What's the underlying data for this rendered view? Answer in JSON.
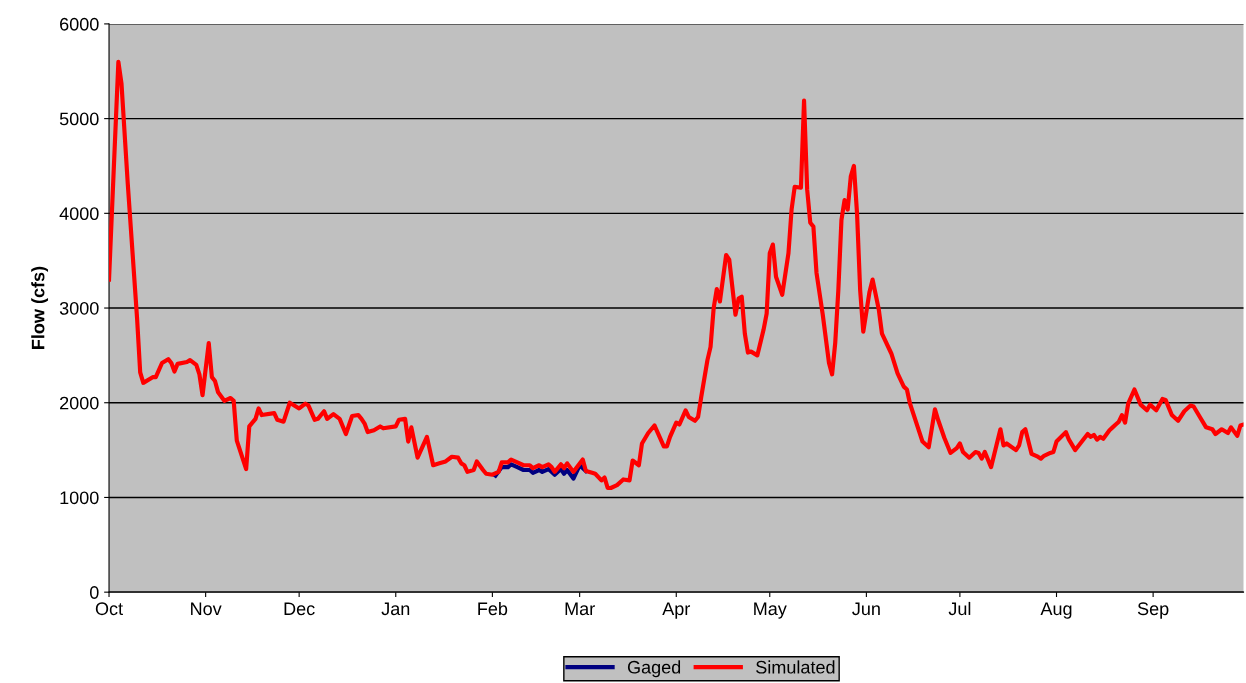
{
  "chart_data": {
    "type": "line",
    "ylabel": "Flow (cfs)",
    "xlim": [
      "2000-10-01",
      "2001-09-30"
    ],
    "xticks": [
      {
        "value": "2000-10-01",
        "label": "Oct"
      },
      {
        "value": "2000-11-01",
        "label": "Nov"
      },
      {
        "value": "2000-12-01",
        "label": "Dec"
      },
      {
        "value": "2001-01-01",
        "label": "Jan"
      },
      {
        "value": "2001-02-01",
        "label": "Feb"
      },
      {
        "value": "2001-03-01",
        "label": "Mar"
      },
      {
        "value": "2001-04-01",
        "label": "Apr"
      },
      {
        "value": "2001-05-01",
        "label": "May"
      },
      {
        "value": "2001-06-01",
        "label": "Jun"
      },
      {
        "value": "2001-07-01",
        "label": "Jul"
      },
      {
        "value": "2001-08-01",
        "label": "Aug"
      },
      {
        "value": "2001-09-01",
        "label": "Sep"
      }
    ],
    "ylim": [
      0,
      6000
    ],
    "yticks": [
      0,
      1000,
      2000,
      3000,
      4000,
      5000,
      6000
    ],
    "grid": "y",
    "legend": "bottom",
    "marker": "none",
    "line_style": "solid",
    "series": [
      {
        "name": "Gaged",
        "color": "#000080",
        "x": [
          "2001-02-02",
          "2001-02-04",
          "2001-02-06",
          "2001-02-07",
          "2001-02-09",
          "2001-02-11",
          "2001-02-13",
          "2001-02-14",
          "2001-02-16",
          "2001-02-17",
          "2001-02-19",
          "2001-02-21",
          "2001-02-23",
          "2001-02-24",
          "2001-02-25",
          "2001-02-27",
          "2001-03-01",
          "2001-03-03"
        ],
        "values": [
          1230,
          1320,
          1320,
          1350,
          1320,
          1290,
          1290,
          1260,
          1290,
          1270,
          1300,
          1240,
          1300,
          1250,
          1290,
          1200,
          1340,
          1280
        ]
      },
      {
        "name": "Simulated",
        "color": "#ff0000",
        "x": [
          "2000-10-01",
          "2000-10-04",
          "2000-10-05",
          "2000-10-07",
          "2000-10-10",
          "2000-10-11",
          "2000-10-12",
          "2000-10-15",
          "2000-10-16",
          "2000-10-18",
          "2000-10-20",
          "2000-10-21",
          "2000-10-22",
          "2000-10-23",
          "2000-10-26",
          "2000-10-27",
          "2000-10-29",
          "2000-10-30",
          "2000-10-31",
          "2000-11-02",
          "2000-11-03",
          "2000-11-04",
          "2000-11-05",
          "2000-11-07",
          "2000-11-09",
          "2000-11-10",
          "2000-11-11",
          "2000-11-14",
          "2000-11-15",
          "2000-11-17",
          "2000-11-18",
          "2000-11-19",
          "2000-11-23",
          "2000-11-24",
          "2000-11-26",
          "2000-11-28",
          "2000-12-01",
          "2000-12-03",
          "2000-12-04",
          "2000-12-06",
          "2000-12-07",
          "2000-12-09",
          "2000-12-10",
          "2000-12-12",
          "2000-12-14",
          "2000-12-16",
          "2000-12-18",
          "2000-12-20",
          "2000-12-21",
          "2000-12-22",
          "2000-12-23",
          "2000-12-25",
          "2000-12-27",
          "2000-12-28",
          "2001-01-01",
          "2001-01-02",
          "2001-01-04",
          "2001-01-05",
          "2001-01-06",
          "2001-01-08",
          "2001-01-11",
          "2001-01-13",
          "2001-01-15",
          "2001-01-17",
          "2001-01-19",
          "2001-01-21",
          "2001-01-22",
          "2001-01-23",
          "2001-01-24",
          "2001-01-26",
          "2001-01-27",
          "2001-01-29",
          "2001-01-30",
          "2001-02-01",
          "2001-02-03",
          "2001-02-04",
          "2001-02-06",
          "2001-02-07",
          "2001-02-09",
          "2001-02-11",
          "2001-02-13",
          "2001-02-14",
          "2001-02-16",
          "2001-02-17",
          "2001-02-19",
          "2001-02-20",
          "2001-02-21",
          "2001-02-23",
          "2001-02-24",
          "2001-02-25",
          "2001-02-27",
          "2001-03-02",
          "2001-03-03",
          "2001-03-05",
          "2001-03-06",
          "2001-03-08",
          "2001-03-09",
          "2001-03-10",
          "2001-03-11",
          "2001-03-13",
          "2001-03-15",
          "2001-03-17",
          "2001-03-18",
          "2001-03-20",
          "2001-03-21",
          "2001-03-23",
          "2001-03-25",
          "2001-03-28",
          "2001-03-29",
          "2001-03-30",
          "2001-04-01",
          "2001-04-02",
          "2001-04-04",
          "2001-04-05",
          "2001-04-07",
          "2001-04-08",
          "2001-04-09",
          "2001-04-11",
          "2001-04-12",
          "2001-04-13",
          "2001-04-14",
          "2001-04-15",
          "2001-04-17",
          "2001-04-18",
          "2001-04-20",
          "2001-04-21",
          "2001-04-22",
          "2001-04-23",
          "2001-04-24",
          "2001-04-25",
          "2001-04-27",
          "2001-04-29",
          "2001-04-30",
          "2001-05-01",
          "2001-05-02",
          "2001-05-03",
          "2001-05-05",
          "2001-05-07",
          "2001-05-08",
          "2001-05-09",
          "2001-05-11",
          "2001-05-12",
          "2001-05-13",
          "2001-05-14",
          "2001-05-15",
          "2001-05-16",
          "2001-05-18",
          "2001-05-20",
          "2001-05-21",
          "2001-05-22",
          "2001-05-23",
          "2001-05-24",
          "2001-05-25",
          "2001-05-26",
          "2001-05-27",
          "2001-05-28",
          "2001-05-29",
          "2001-05-30",
          "2001-05-31",
          "2001-06-02",
          "2001-06-03",
          "2001-06-05",
          "2001-06-06",
          "2001-06-09",
          "2001-06-11",
          "2001-06-13",
          "2001-06-14",
          "2001-06-15",
          "2001-06-18",
          "2001-06-19",
          "2001-06-21",
          "2001-06-23",
          "2001-06-24",
          "2001-06-26",
          "2001-06-28",
          "2001-06-30",
          "2001-07-01",
          "2001-07-02",
          "2001-07-04",
          "2001-07-06",
          "2001-07-07",
          "2001-07-08",
          "2001-07-09",
          "2001-07-11",
          "2001-07-14",
          "2001-07-15",
          "2001-07-16",
          "2001-07-19",
          "2001-07-20",
          "2001-07-21",
          "2001-07-22",
          "2001-07-24",
          "2001-07-26",
          "2001-07-27",
          "2001-07-28",
          "2001-07-30",
          "2001-07-31",
          "2001-08-01",
          "2001-08-04",
          "2001-08-05",
          "2001-08-07",
          "2001-08-11",
          "2001-08-12",
          "2001-08-13",
          "2001-08-14",
          "2001-08-15",
          "2001-08-16",
          "2001-08-18",
          "2001-08-19",
          "2001-08-20",
          "2001-08-21",
          "2001-08-22",
          "2001-08-23",
          "2001-08-24",
          "2001-08-26",
          "2001-08-28",
          "2001-08-30",
          "2001-08-31",
          "2001-09-02",
          "2001-09-04",
          "2001-09-05",
          "2001-09-07",
          "2001-09-09",
          "2001-09-11",
          "2001-09-13",
          "2001-09-14",
          "2001-09-16",
          "2001-09-18",
          "2001-09-20",
          "2001-09-21",
          "2001-09-23",
          "2001-09-25",
          "2001-09-26",
          "2001-09-28",
          "2001-09-29",
          "2001-09-30"
        ],
        "values": [
          3300,
          5600,
          5370,
          4320,
          2890,
          2320,
          2210,
          2270,
          2270,
          2420,
          2460,
          2420,
          2330,
          2410,
          2430,
          2450,
          2400,
          2300,
          2080,
          2630,
          2270,
          2230,
          2110,
          2020,
          2050,
          2020,
          1600,
          1300,
          1750,
          1830,
          1940,
          1870,
          1890,
          1820,
          1800,
          2000,
          1940,
          1990,
          1970,
          1820,
          1830,
          1910,
          1830,
          1880,
          1830,
          1670,
          1860,
          1870,
          1830,
          1780,
          1690,
          1710,
          1750,
          1730,
          1750,
          1820,
          1830,
          1590,
          1740,
          1420,
          1640,
          1340,
          1360,
          1380,
          1430,
          1420,
          1360,
          1340,
          1270,
          1290,
          1380,
          1290,
          1250,
          1240,
          1270,
          1370,
          1370,
          1400,
          1370,
          1340,
          1340,
          1310,
          1340,
          1320,
          1350,
          1320,
          1270,
          1350,
          1310,
          1360,
          1270,
          1400,
          1280,
          1260,
          1250,
          1180,
          1210,
          1100,
          1100,
          1130,
          1190,
          1180,
          1390,
          1340,
          1570,
          1680,
          1760,
          1540,
          1540,
          1640,
          1790,
          1770,
          1920,
          1850,
          1810,
          1850,
          2060,
          2450,
          2590,
          3000,
          3200,
          3070,
          3560,
          3510,
          2930,
          3100,
          3120,
          2730,
          2530,
          2540,
          2500,
          2770,
          2940,
          3580,
          3670,
          3330,
          3140,
          3580,
          4040,
          4280,
          4270,
          5190,
          4250,
          3900,
          3860,
          3370,
          2930,
          2420,
          2300,
          2630,
          3190,
          3930,
          4140,
          4040,
          4390,
          4500,
          4000,
          3190,
          2750,
          3170,
          3300,
          2980,
          2730,
          2520,
          2310,
          2170,
          2140,
          1990,
          1690,
          1590,
          1530,
          1930,
          1820,
          1630,
          1470,
          1520,
          1570,
          1480,
          1420,
          1480,
          1470,
          1410,
          1480,
          1320,
          1720,
          1550,
          1570,
          1500,
          1550,
          1690,
          1720,
          1460,
          1430,
          1410,
          1440,
          1470,
          1480,
          1590,
          1690,
          1610,
          1500,
          1670,
          1640,
          1660,
          1610,
          1640,
          1620,
          1710,
          1740,
          1770,
          1800,
          1870,
          1790,
          1990,
          2140,
          1980,
          1920,
          1980,
          1920,
          2040,
          2030,
          1870,
          1810,
          1910,
          1970,
          1960,
          1850,
          1740,
          1720,
          1670,
          1720,
          1680,
          1740,
          1650,
          1760,
          1770
        ]
      }
    ]
  }
}
